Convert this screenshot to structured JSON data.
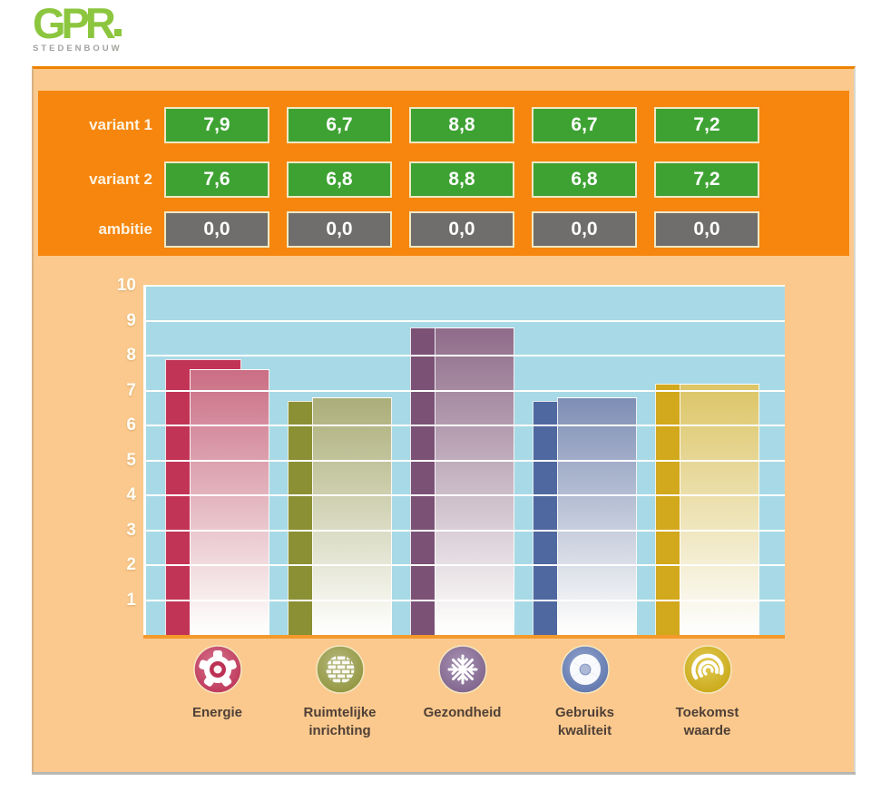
{
  "logo": {
    "title": "GPR",
    "subtitle": "STEDENBOUW"
  },
  "colors": {
    "logo_green": "#8CC63E",
    "logo_gray": "#A3A29E",
    "header_bg": "#F6860D",
    "panel_bg": "#FBC98D",
    "score_green": "#3EA233",
    "score_gray": "#6F6E6C",
    "box_border": "#EFE8C4",
    "plot_bg": "#A7DAE6",
    "gridline": "#FFFFFF",
    "axis_label": "#FFFDF5",
    "category_label": "#4F4037",
    "baseline_strip": "#F4992C"
  },
  "scoreboard": {
    "rows": [
      {
        "label": "variant 1",
        "style": "variant",
        "values": [
          "7,9",
          "6,7",
          "8,8",
          "6,7",
          "7,2"
        ]
      },
      {
        "label": "variant 2",
        "style": "variant",
        "values": [
          "7,6",
          "6,8",
          "8,8",
          "6,8",
          "7,2"
        ]
      },
      {
        "label": "ambitie",
        "style": "ambition",
        "values": [
          "0,0",
          "0,0",
          "0,0",
          "0,0",
          "0,0"
        ]
      }
    ]
  },
  "chart_data": {
    "type": "bar",
    "categories": [
      "Energie",
      "Ruimtelijke inrichting",
      "Gezondheid",
      "Gebruiks kwaliteit",
      "Toekomst waarde"
    ],
    "series": [
      {
        "name": "variant 1",
        "values": [
          7.9,
          6.7,
          8.8,
          6.7,
          7.2
        ]
      },
      {
        "name": "variant 2",
        "values": [
          7.6,
          6.8,
          8.8,
          6.8,
          7.2
        ]
      },
      {
        "name": "ambitie",
        "values": [
          0.0,
          0.0,
          0.0,
          0.0,
          0.0
        ]
      }
    ],
    "ylim": [
      0,
      10
    ],
    "yticks": [
      "10",
      "9",
      "8",
      "7",
      "6",
      "5",
      "4",
      "3",
      "2",
      "1"
    ],
    "grid": true,
    "legend_position": "none",
    "xlabel": "",
    "ylabel": "",
    "title": ""
  },
  "categories": [
    {
      "name": "energie",
      "label_lines": [
        "Energie"
      ],
      "icon": "gear-icon",
      "bar_color": "#C23456",
      "bar_gradient_top": "#CA6E84",
      "icon_light": "#D5758E",
      "icon_dark": "#BC3155"
    },
    {
      "name": "ruimtelijke-inrichting",
      "label_lines": [
        "Ruimtelijke",
        "inrichting"
      ],
      "icon": "bricks-icon",
      "bar_color": "#8B9034",
      "bar_gradient_top": "#ABAE78",
      "icon_light": "#B5B87F",
      "icon_dark": "#8F9339"
    },
    {
      "name": "gezondheid",
      "label_lines": [
        "Gezondheid"
      ],
      "icon": "snowflake-icon",
      "bar_color": "#7B5176",
      "bar_gradient_top": "#8F6C8A",
      "icon_light": "#A693B3",
      "icon_dark": "#7D5F88"
    },
    {
      "name": "gebruikskwaliteit",
      "label_lines": [
        "Gebruiks",
        "kwaliteit"
      ],
      "icon": "aperture-icon",
      "bar_color": "#4F68A0",
      "bar_gradient_top": "#7E8EB5",
      "icon_light": "#94A5CE",
      "icon_dark": "#5C73AB"
    },
    {
      "name": "toekomstwaarde",
      "label_lines": [
        "Toekomst",
        "waarde"
      ],
      "icon": "swirl-icon",
      "bar_color": "#D2A81C",
      "bar_gradient_top": "#DCC566",
      "icon_light": "#E2CB55",
      "icon_dark": "#C7A513"
    }
  ]
}
